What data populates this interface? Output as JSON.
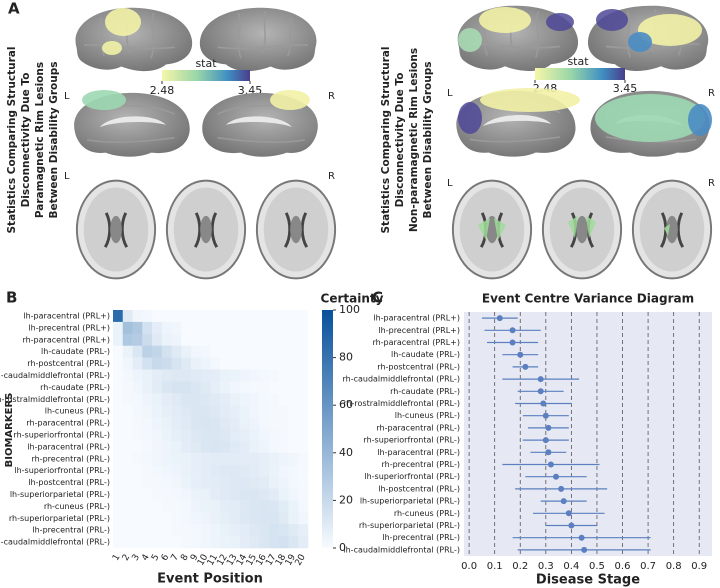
{
  "panel_a": {
    "label": "A",
    "left": {
      "title": [
        "Statistics Comparing Structural",
        "Disconnectivity Due To",
        "Paramagnetic Rim Lesions",
        "Between Disability Groups"
      ],
      "colorbar": {
        "label": "stat",
        "ticks": [
          2.48,
          3.45
        ]
      },
      "hemisphere_labels": [
        "L",
        "R",
        "L",
        "R"
      ]
    },
    "right": {
      "title": [
        "Statistics Comparing Structural",
        "Disconnectivity Due To",
        "Non-paramagnetic Rim Lesions",
        "Between Disability Groups"
      ],
      "colorbar": {
        "label": "stat",
        "ticks": [
          2.48,
          3.45
        ]
      },
      "hemisphere_labels": [
        "L",
        "R",
        "L",
        "R"
      ]
    }
  },
  "chart_data": [
    {
      "type": "heatmap",
      "label": "B",
      "xlabel": "Event Position",
      "ylabel": "BIOMARKERS",
      "x": [
        1,
        2,
        3,
        4,
        5,
        6,
        7,
        8,
        9,
        10,
        11,
        12,
        13,
        14,
        15,
        16,
        17,
        18,
        19,
        20
      ],
      "categories": [
        "lh-paracentral (PRL+)",
        "lh-precentral (PRL+)",
        "rh-paracentral (PRL+)",
        "lh-caudate (PRL-)",
        "rh-postcentral (PRL-)",
        "rh-caudalmiddlefrontal (PRL-)",
        "rh-caudate (PRL-)",
        "rh-rostralmiddlefrontal (PRL-)",
        "lh-cuneus (PRL-)",
        "rh-paracentral (PRL-)",
        "rh-superiorfrontal (PRL-)",
        "lh-paracentral (PRL-)",
        "rh-precentral (PRL-)",
        "lh-superiorfrontal (PRL-)",
        "lh-postcentral (PRL-)",
        "lh-superiorparietal (PRL-)",
        "rh-cuneus (PRL-)",
        "rh-superiorparietal (PRL-)",
        "lh-precentral (PRL-)",
        "lh-caudalmiddlefrontal (PRL-)"
      ],
      "values": [
        [
          85,
          10,
          3,
          2,
          0,
          0,
          0,
          0,
          0,
          0,
          0,
          0,
          0,
          0,
          0,
          0,
          0,
          0,
          0,
          0
        ],
        [
          5,
          35,
          30,
          15,
          8,
          4,
          3,
          0,
          0,
          0,
          0,
          0,
          0,
          0,
          0,
          0,
          0,
          0,
          0,
          0
        ],
        [
          5,
          30,
          28,
          18,
          10,
          5,
          4,
          0,
          0,
          0,
          0,
          0,
          0,
          0,
          0,
          0,
          0,
          0,
          0,
          0
        ],
        [
          0,
          5,
          12,
          25,
          22,
          15,
          10,
          6,
          3,
          2,
          0,
          0,
          0,
          0,
          0,
          0,
          0,
          0,
          0,
          0
        ],
        [
          0,
          3,
          8,
          15,
          20,
          18,
          14,
          10,
          6,
          4,
          2,
          0,
          0,
          0,
          0,
          0,
          0,
          0,
          0,
          0
        ],
        [
          0,
          2,
          4,
          6,
          8,
          10,
          11,
          11,
          10,
          9,
          8,
          6,
          5,
          4,
          3,
          2,
          1,
          0,
          0,
          0
        ],
        [
          0,
          1,
          3,
          6,
          9,
          12,
          14,
          14,
          12,
          10,
          7,
          5,
          3,
          2,
          1,
          1,
          0,
          0,
          0,
          0
        ],
        [
          0,
          1,
          2,
          4,
          6,
          8,
          10,
          12,
          12,
          11,
          10,
          8,
          6,
          4,
          3,
          2,
          1,
          0,
          0,
          0
        ],
        [
          0,
          0,
          2,
          3,
          5,
          7,
          9,
          11,
          12,
          12,
          11,
          9,
          7,
          5,
          3,
          2,
          1,
          1,
          0,
          0
        ],
        [
          0,
          0,
          1,
          2,
          4,
          6,
          8,
          10,
          12,
          13,
          12,
          10,
          8,
          6,
          4,
          2,
          1,
          1,
          0,
          0
        ],
        [
          0,
          0,
          1,
          2,
          3,
          5,
          7,
          9,
          11,
          12,
          12,
          11,
          9,
          7,
          5,
          3,
          2,
          1,
          0,
          0
        ],
        [
          0,
          0,
          0,
          1,
          3,
          4,
          6,
          8,
          10,
          12,
          13,
          12,
          10,
          8,
          6,
          4,
          2,
          1,
          0,
          0
        ],
        [
          0,
          0,
          1,
          2,
          3,
          4,
          5,
          6,
          7,
          8,
          9,
          9,
          9,
          8,
          8,
          7,
          6,
          4,
          3,
          1
        ],
        [
          0,
          0,
          0,
          1,
          2,
          3,
          4,
          6,
          7,
          8,
          10,
          11,
          11,
          10,
          9,
          7,
          5,
          3,
          2,
          1
        ],
        [
          0,
          0,
          0,
          1,
          1,
          2,
          3,
          5,
          7,
          8,
          9,
          10,
          11,
          11,
          10,
          9,
          6,
          4,
          2,
          1
        ],
        [
          0,
          0,
          0,
          0,
          1,
          1,
          2,
          3,
          5,
          6,
          8,
          10,
          11,
          12,
          12,
          11,
          9,
          5,
          3,
          1
        ],
        [
          0,
          0,
          0,
          0,
          0,
          1,
          1,
          2,
          4,
          5,
          6,
          8,
          9,
          11,
          12,
          13,
          12,
          9,
          5,
          2
        ],
        [
          0,
          0,
          0,
          0,
          0,
          0,
          1,
          2,
          3,
          4,
          6,
          7,
          9,
          11,
          12,
          13,
          13,
          10,
          6,
          3
        ],
        [
          0,
          0,
          0,
          0,
          0,
          0,
          1,
          1,
          2,
          3,
          4,
          6,
          7,
          9,
          11,
          12,
          14,
          13,
          10,
          7
        ],
        [
          0,
          0,
          0,
          0,
          0,
          0,
          0,
          1,
          2,
          3,
          4,
          5,
          6,
          8,
          10,
          12,
          14,
          15,
          12,
          8
        ]
      ],
      "colorbar": {
        "title": "Certainty",
        "lim": [
          0,
          100
        ],
        "ticks": [
          0,
          20,
          40,
          60,
          80,
          100
        ],
        "colors": [
          "#f7fbff",
          "#08519c"
        ]
      }
    },
    {
      "type": "errorbar",
      "label": "C",
      "title": "Event Centre Variance Diagram",
      "xlabel": "Disease Stage",
      "categories": [
        "lh-paracentral (PRL+)",
        "lh-precentral (PRL+)",
        "rh-paracentral (PRL+)",
        "lh-caudate (PRL-)",
        "rh-postcentral (PRL-)",
        "rh-caudalmiddlefrontal (PRL-)",
        "rh-caudate (PRL-)",
        "rh-rostralmiddlefrontal (PRL-)",
        "lh-cuneus (PRL-)",
        "rh-paracentral (PRL-)",
        "rh-superiorfrontal (PRL-)",
        "lh-paracentral (PRL-)",
        "rh-precentral (PRL-)",
        "lh-superiorfrontal (PRL-)",
        "lh-postcentral (PRL-)",
        "lh-superiorparietal (PRL-)",
        "rh-cuneus (PRL-)",
        "rh-superiorparietal (PRL-)",
        "lh-precentral (PRL-)",
        "lh-caudalmiddlefrontal (PRL-)"
      ],
      "values": [
        0.12,
        0.17,
        0.17,
        0.2,
        0.22,
        0.28,
        0.28,
        0.29,
        0.3,
        0.31,
        0.3,
        0.31,
        0.32,
        0.34,
        0.36,
        0.37,
        0.39,
        0.4,
        0.44,
        0.45
      ],
      "errors": [
        0.07,
        0.11,
        0.1,
        0.07,
        0.05,
        0.15,
        0.09,
        0.11,
        0.09,
        0.08,
        0.09,
        0.07,
        0.19,
        0.12,
        0.18,
        0.09,
        0.14,
        0.1,
        0.27,
        0.26
      ],
      "color": "#5b7fbf",
      "background": "#e6e9f4",
      "xlim": [
        -0.02,
        0.95
      ],
      "xticks": [
        {
          "value": 0,
          "label": "0.0"
        },
        0.1,
        0.2,
        0.3,
        0.4,
        0.5,
        0.6,
        0.7,
        0.8,
        0.9
      ],
      "grid": true
    }
  ]
}
